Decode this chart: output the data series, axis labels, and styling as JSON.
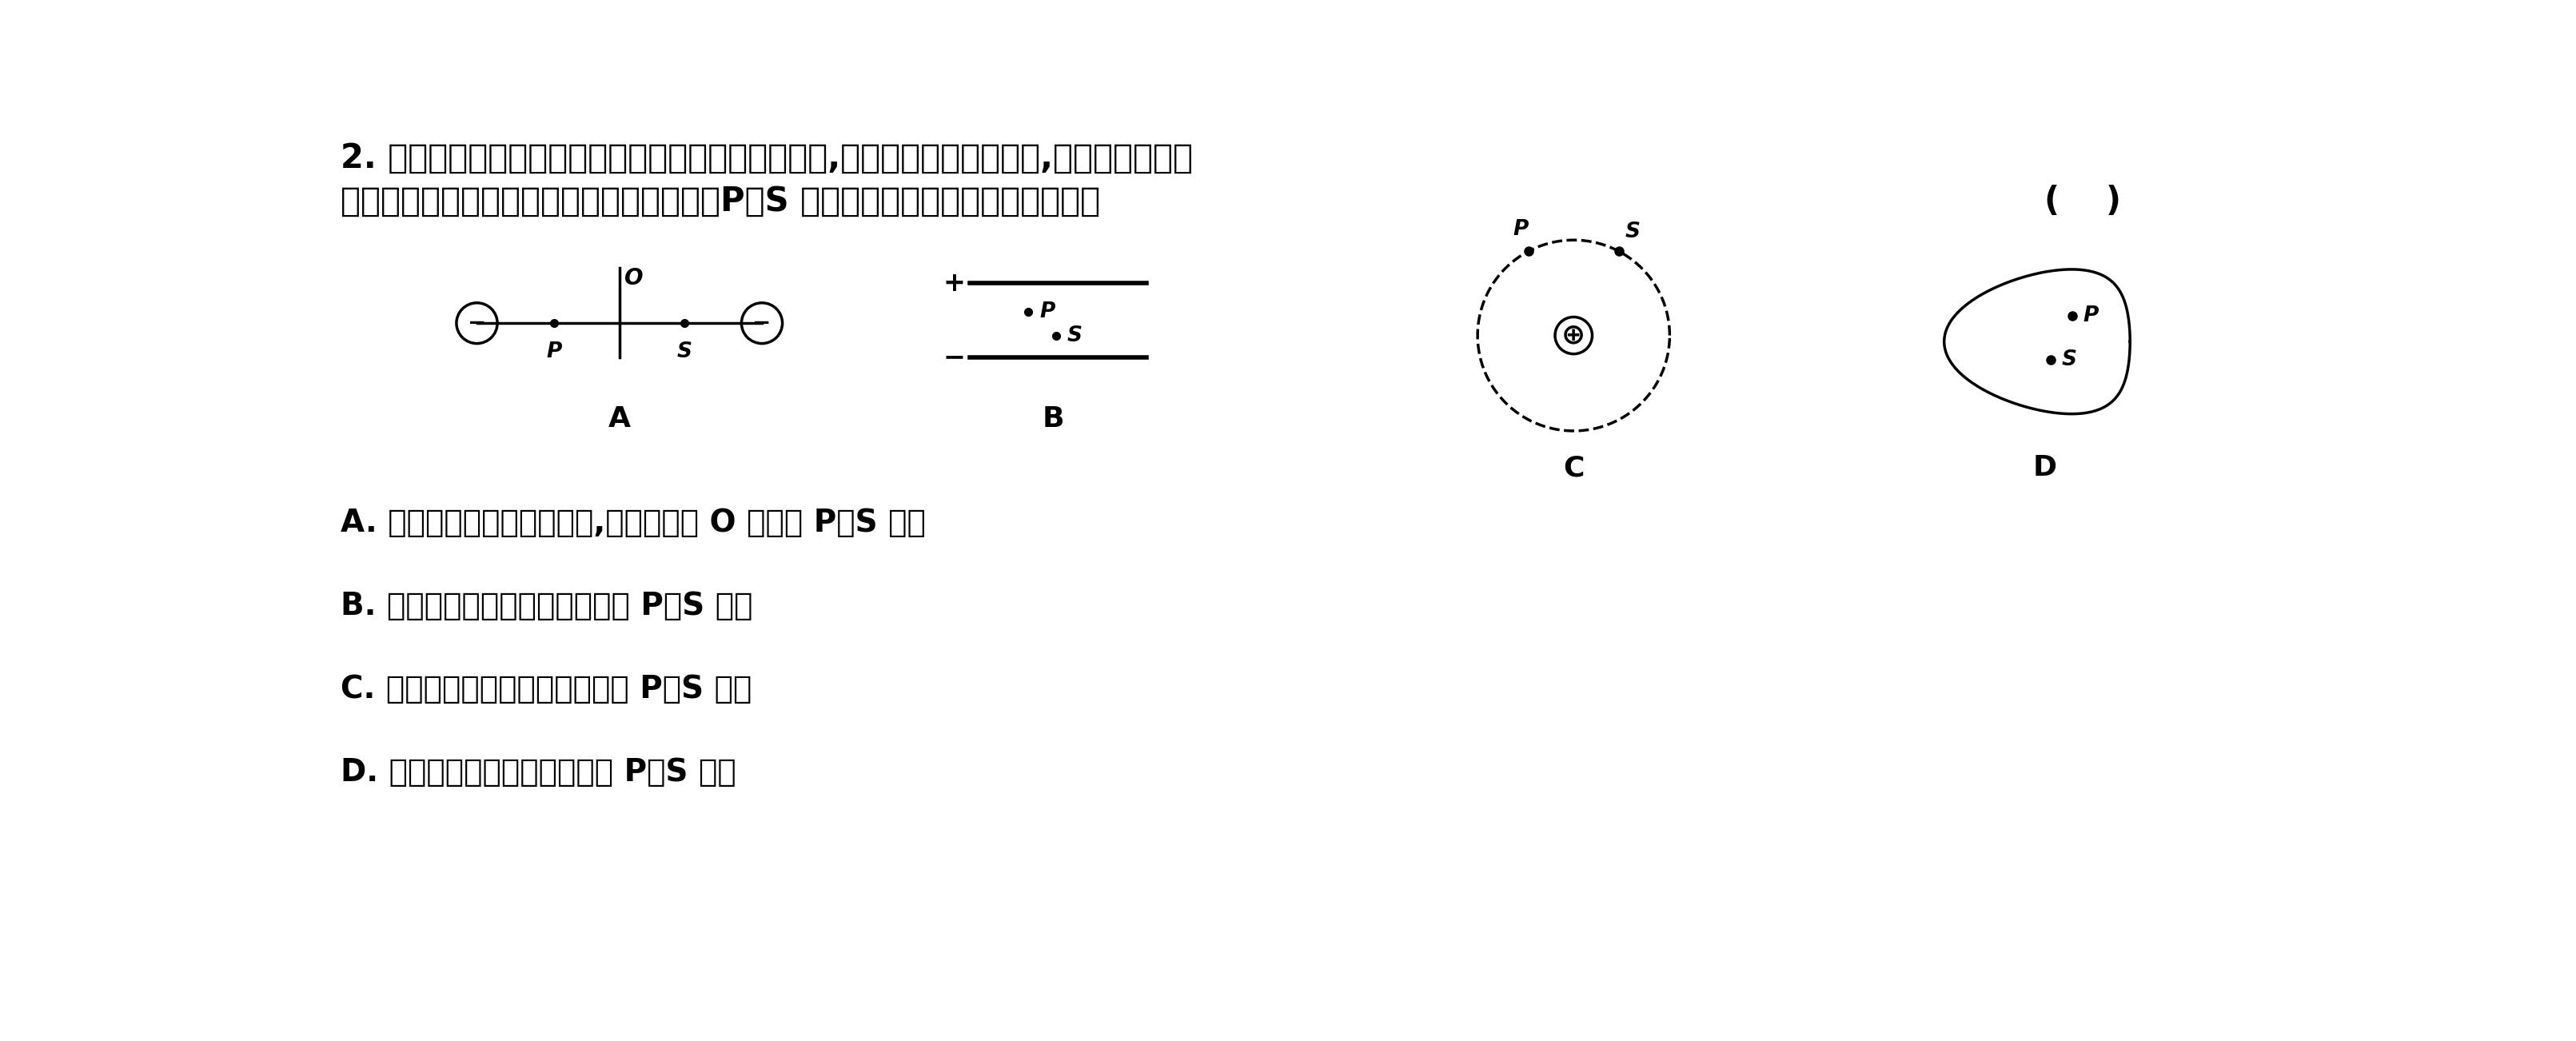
{
  "title_line1": "2. 电场强度和电势是静电场中两个非常重要的物理量,场强反映电场力的性质,电势反映电场能",
  "title_line2": "的性质。在如图所示真空空间的静电场中，P、S 两点的电场强度和电势均相同的是",
  "bracket": "(    )",
  "option_A": "A. 两个等量同种电荷连线上,与连线中点 O 等距的 P、S 两点",
  "option_B": "B. 带电平行板电容器两极板间的 P、S 两点",
  "option_C": "C. 以正点电荷为圆心的圆周上的 P、S 两点",
  "option_D": "D. 位于静电平衡的导体内部的 P、S 两点",
  "bg_color": "#ffffff",
  "text_color": "#000000"
}
